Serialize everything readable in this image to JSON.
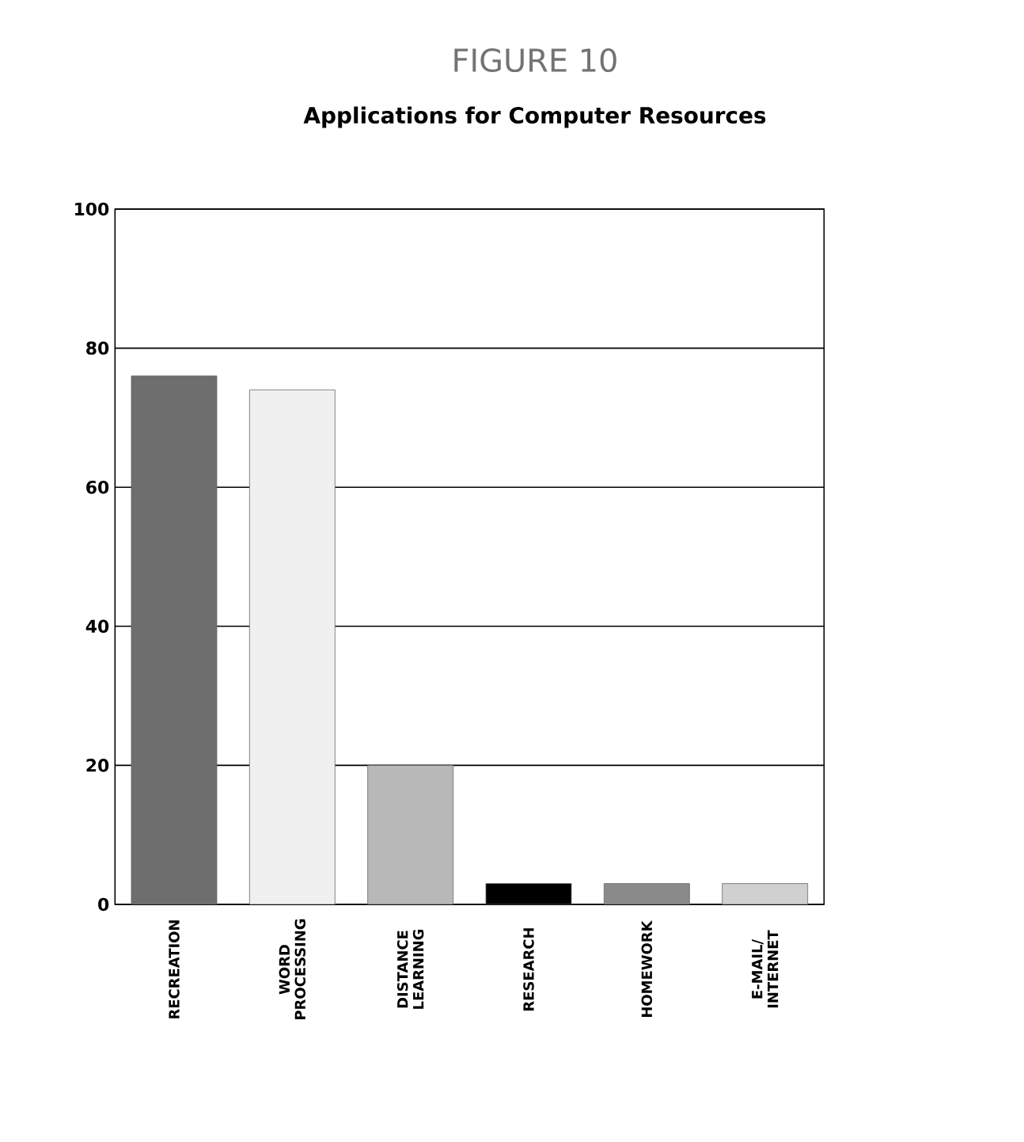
{
  "chart_data": {
    "type": "bar",
    "title": "FIGURE 10",
    "subtitle": "Applications for Computer Resources",
    "categories": [
      "RECREATION",
      "WORD PROCESSING",
      "DISTANCE LEARNING",
      "RESEARCH",
      "HOMEWORK",
      "E-MAIL/ INTERNET"
    ],
    "values": [
      76,
      74,
      20,
      3,
      3,
      3
    ],
    "colors": [
      "#6e6e6e",
      "#f0f0f0",
      "#b8b8b8",
      "#000000",
      "#8a8a8a",
      "#d0d0d0"
    ],
    "ylim": [
      0,
      100
    ],
    "yticks": [
      0,
      20,
      40,
      60,
      80,
      100
    ],
    "grid": "y"
  }
}
